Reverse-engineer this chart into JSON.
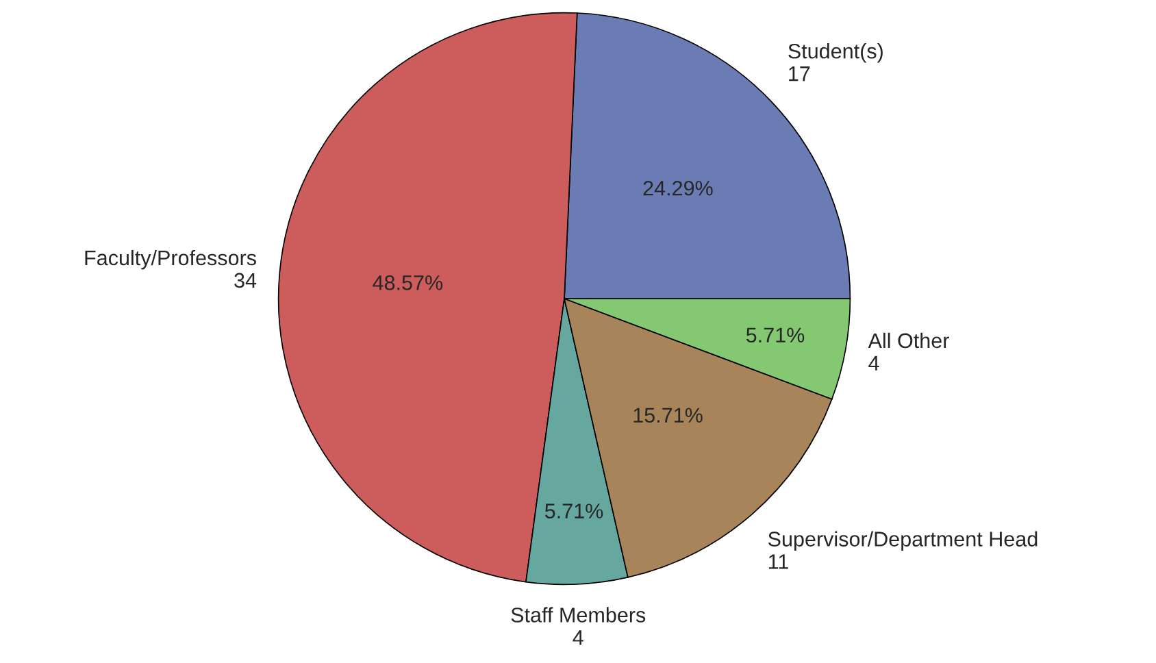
{
  "chart_data": {
    "type": "pie",
    "categories": [
      "Student(s)",
      "Faculty/Professors",
      "Staff Members",
      "Supervisor/Department Head",
      "All Other"
    ],
    "values": [
      17,
      34,
      4,
      11,
      4
    ],
    "colors": [
      "#6b7bb3",
      "#cd5c5c",
      "#66a8a0",
      "#a8845a",
      "#85c872"
    ],
    "annotations": [
      "24.29%",
      "48.57%",
      "5.71%",
      "15.71%",
      "5.71%"
    ],
    "data_labels": true,
    "legend": false
  }
}
